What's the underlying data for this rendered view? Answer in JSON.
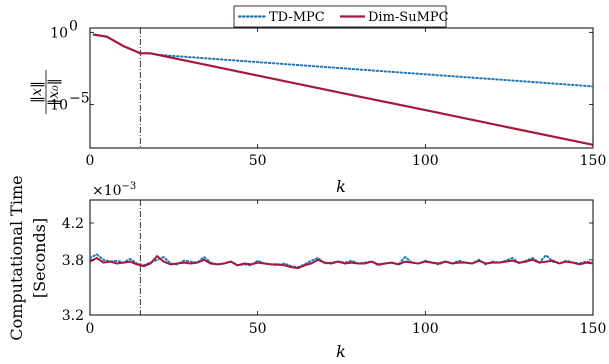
{
  "chart_data": [
    {
      "type": "line",
      "id": "top",
      "xlabel": "k",
      "ylabel": "‖x‖/‖x₀‖",
      "ylabel_num": "‖x‖",
      "ylabel_den": "‖x₀‖",
      "xlim": [
        0,
        150
      ],
      "ylim_log10": [
        -8.0,
        0.3
      ],
      "yscale": "log",
      "xticks": [
        0,
        50,
        100,
        150
      ],
      "yticks": [
        {
          "label": "10",
          "exp": "0",
          "value": 1
        },
        {
          "label": "10",
          "exp": "−5",
          "value": 1e-05
        }
      ],
      "vline_x": 15,
      "legend": {
        "placement": "top-center",
        "items": [
          "TD-MPC",
          "Dim-SuMPC"
        ]
      },
      "series": [
        {
          "name": "TD-MPC",
          "color": "#1f77b4",
          "style": "dotted",
          "x": [
            1,
            5,
            10,
            15,
            18,
            20,
            30,
            50,
            75,
            100,
            125,
            150
          ],
          "log10_y": [
            -0.15,
            -0.3,
            -0.95,
            -1.45,
            -1.45,
            -1.55,
            -1.72,
            -2.06,
            -2.48,
            -2.9,
            -3.32,
            -3.74
          ]
        },
        {
          "name": "Dim-SuMPC",
          "color": "#a4193d",
          "style": "solid",
          "x": [
            1,
            5,
            10,
            15,
            18,
            20,
            50,
            75,
            100,
            125,
            150
          ],
          "log10_y": [
            -0.15,
            -0.3,
            -0.95,
            -1.45,
            -1.45,
            -1.55,
            -2.99,
            -4.19,
            -5.38,
            -6.58,
            -7.78
          ]
        }
      ]
    },
    {
      "type": "line",
      "id": "bottom",
      "xlabel": "k",
      "ylabel": "Computational Time",
      "ylabel2": "[Seconds]",
      "multiplier": "×10",
      "multiplier_exp": "−3",
      "xlim": [
        0,
        150
      ],
      "ylim": [
        3.2,
        4.45
      ],
      "xticks": [
        0,
        50,
        100,
        150
      ],
      "yticks": [
        3.2,
        3.8,
        4.2
      ],
      "ytick_labels": [
        "3.2",
        "3.8",
        "4.2"
      ],
      "vline_x": 15,
      "series": [
        {
          "name": "TD-MPC",
          "color": "#1f77b4",
          "style": "dotted",
          "x": [
            0,
            2,
            4,
            6,
            8,
            10,
            12,
            14,
            16,
            18,
            20,
            22,
            24,
            26,
            28,
            30,
            32,
            34,
            36,
            38,
            40,
            42,
            44,
            46,
            48,
            50,
            52,
            54,
            56,
            58,
            60,
            62,
            64,
            66,
            68,
            70,
            72,
            74,
            76,
            78,
            80,
            82,
            84,
            86,
            88,
            90,
            92,
            94,
            96,
            98,
            100,
            102,
            104,
            106,
            108,
            110,
            112,
            114,
            116,
            118,
            120,
            122,
            124,
            126,
            128,
            130,
            132,
            134,
            136,
            138,
            140,
            142,
            144,
            146,
            148,
            150
          ],
          "values": [
            3.82,
            3.86,
            3.8,
            3.78,
            3.79,
            3.77,
            3.81,
            3.76,
            3.74,
            3.77,
            3.8,
            3.83,
            3.76,
            3.75,
            3.79,
            3.78,
            3.77,
            3.83,
            3.77,
            3.75,
            3.76,
            3.78,
            3.74,
            3.75,
            3.74,
            3.79,
            3.76,
            3.75,
            3.74,
            3.76,
            3.73,
            3.72,
            3.75,
            3.79,
            3.82,
            3.76,
            3.77,
            3.78,
            3.77,
            3.79,
            3.76,
            3.77,
            3.78,
            3.74,
            3.76,
            3.77,
            3.75,
            3.83,
            3.77,
            3.76,
            3.79,
            3.77,
            3.75,
            3.78,
            3.76,
            3.79,
            3.77,
            3.76,
            3.8,
            3.75,
            3.78,
            3.77,
            3.79,
            3.82,
            3.76,
            3.79,
            3.82,
            3.77,
            3.85,
            3.78,
            3.76,
            3.79,
            3.77,
            3.76,
            3.78,
            3.77
          ]
        },
        {
          "name": "Dim-SuMPC",
          "color": "#a4193d",
          "style": "solid",
          "x": [
            0,
            2,
            4,
            6,
            8,
            10,
            12,
            14,
            16,
            18,
            20,
            22,
            24,
            26,
            28,
            30,
            32,
            34,
            36,
            38,
            40,
            42,
            44,
            46,
            48,
            50,
            52,
            54,
            56,
            58,
            60,
            62,
            64,
            66,
            68,
            70,
            72,
            74,
            76,
            78,
            80,
            82,
            84,
            86,
            88,
            90,
            92,
            94,
            96,
            98,
            100,
            102,
            104,
            106,
            108,
            110,
            112,
            114,
            116,
            118,
            120,
            122,
            124,
            126,
            128,
            130,
            132,
            134,
            136,
            138,
            140,
            142,
            144,
            146,
            148,
            150
          ],
          "values": [
            3.78,
            3.82,
            3.77,
            3.78,
            3.76,
            3.77,
            3.78,
            3.75,
            3.73,
            3.76,
            3.84,
            3.78,
            3.75,
            3.76,
            3.77,
            3.76,
            3.77,
            3.8,
            3.76,
            3.75,
            3.76,
            3.78,
            3.74,
            3.76,
            3.75,
            3.77,
            3.76,
            3.75,
            3.75,
            3.74,
            3.72,
            3.71,
            3.74,
            3.76,
            3.8,
            3.77,
            3.76,
            3.78,
            3.76,
            3.77,
            3.76,
            3.76,
            3.78,
            3.75,
            3.76,
            3.77,
            3.75,
            3.78,
            3.77,
            3.76,
            3.78,
            3.77,
            3.76,
            3.78,
            3.76,
            3.77,
            3.77,
            3.76,
            3.79,
            3.76,
            3.77,
            3.77,
            3.78,
            3.79,
            3.77,
            3.78,
            3.8,
            3.77,
            3.78,
            3.79,
            3.76,
            3.78,
            3.77,
            3.75,
            3.77,
            3.76
          ]
        }
      ]
    }
  ]
}
